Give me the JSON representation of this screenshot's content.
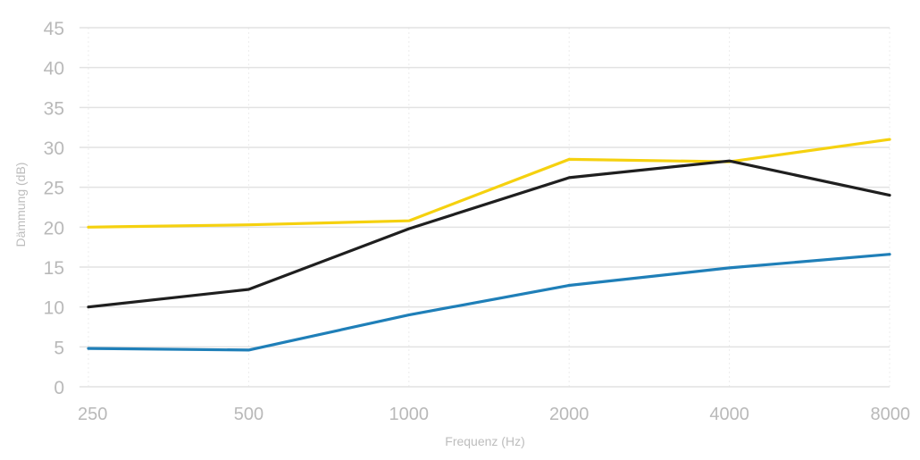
{
  "chart_data": {
    "type": "line",
    "categories": [
      "250",
      "500",
      "1000",
      "2000",
      "4000",
      "8000"
    ],
    "xlabel": "Frequenz (Hz)",
    "ylabel": "Dämmung (dB)",
    "ylim": [
      0,
      45
    ],
    "yticks": [
      0,
      5,
      10,
      15,
      20,
      25,
      30,
      35,
      40,
      45
    ],
    "grid": true,
    "legend": "none",
    "series": [
      {
        "color": "#f5d10f",
        "values": [
          20.0,
          20.3,
          20.8,
          28.5,
          28.2,
          31.0
        ]
      },
      {
        "color": "#1f1f1f",
        "values": [
          10.0,
          12.2,
          19.8,
          26.2,
          28.3,
          24.0
        ]
      },
      {
        "color": "#1f7fb8",
        "values": [
          4.8,
          4.6,
          9.0,
          12.7,
          14.9,
          16.6
        ]
      }
    ],
    "colors": {
      "grid": "#e2e2e2",
      "vgrid": "#ececec",
      "text": "#b9b9b9"
    }
  }
}
